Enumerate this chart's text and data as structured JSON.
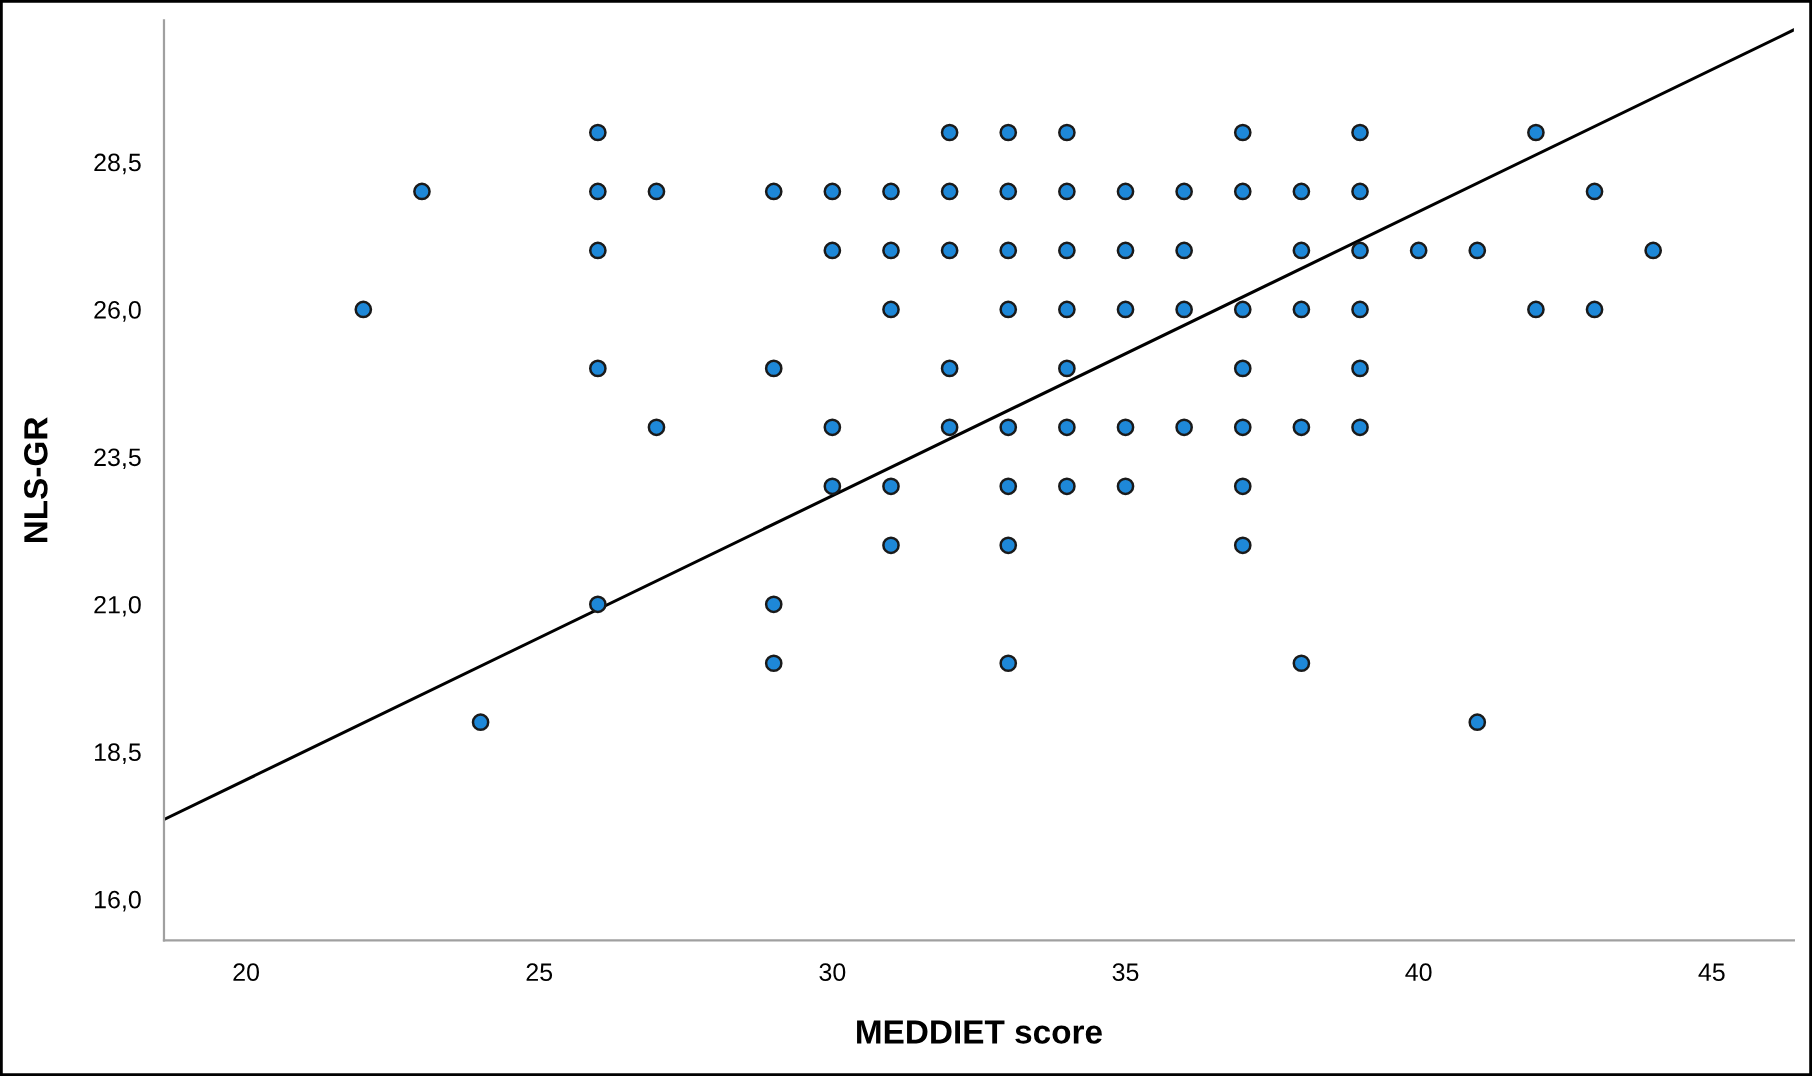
{
  "chart_data": {
    "type": "scatter",
    "xlabel": "MEDDIET score",
    "ylabel": "NLS-GR",
    "xlim": [
      18.6,
      46.4
    ],
    "ylim": [
      15.3,
      30.9
    ],
    "xticks": [
      20,
      25,
      30,
      35,
      40,
      45
    ],
    "yticks": [
      {
        "value": 16,
        "label": "16,0"
      },
      {
        "value": 18.5,
        "label": "18,5"
      },
      {
        "value": 21,
        "label": "21,0"
      },
      {
        "value": 23.5,
        "label": "23,5"
      },
      {
        "value": 26,
        "label": "26,0"
      },
      {
        "value": 28.5,
        "label": "28,5"
      }
    ],
    "grid": false,
    "legend": false,
    "marker": "circle",
    "series": [
      {
        "color": "#1e88d8",
        "x": [
          22,
          23,
          24,
          26,
          26,
          26,
          26,
          26,
          27,
          27,
          29,
          29,
          29,
          29,
          30,
          30,
          30,
          30,
          31,
          31,
          31,
          31,
          31,
          32,
          32,
          32,
          32,
          32,
          33,
          33,
          33,
          33,
          33,
          33,
          33,
          33,
          34,
          34,
          34,
          34,
          34,
          34,
          34,
          35,
          35,
          35,
          35,
          35,
          36,
          36,
          36,
          36,
          37,
          37,
          37,
          37,
          37,
          37,
          37,
          38,
          38,
          38,
          38,
          38,
          39,
          39,
          39,
          39,
          39,
          39,
          40,
          41,
          41,
          42,
          42,
          43,
          43,
          44
        ],
        "values": [
          26,
          28,
          19,
          29,
          28,
          27,
          25,
          21,
          28,
          24,
          28,
          25,
          21,
          20,
          28,
          27,
          24,
          23,
          28,
          27,
          26,
          23,
          22,
          29,
          28,
          27,
          25,
          24,
          29,
          28,
          27,
          26,
          24,
          23,
          22,
          20,
          29,
          28,
          27,
          26,
          25,
          24,
          23,
          28,
          27,
          26,
          24,
          23,
          28,
          27,
          26,
          24,
          29,
          28,
          26,
          25,
          24,
          23,
          22,
          28,
          27,
          26,
          24,
          20,
          29,
          28,
          27,
          26,
          25,
          24,
          27,
          27,
          19,
          29,
          26,
          28,
          26,
          27
        ]
      },
      {
        "type": "line",
        "color": "#000000",
        "line_style": "solid",
        "marker": "none",
        "x": [
          18.6,
          46.4
        ],
        "values": [
          17.35,
          30.74
        ]
      }
    ]
  }
}
